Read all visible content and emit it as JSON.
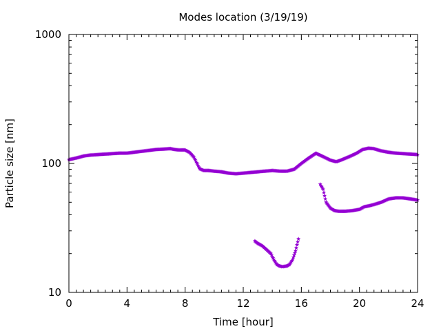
{
  "chart_data": {
    "type": "scatter",
    "title": "Modes location (3/19/19)",
    "xlabel": "Time [hour]",
    "ylabel": "Particle size [nm]",
    "xlim": [
      0,
      24
    ],
    "ylim": [
      10,
      1000
    ],
    "yscale": "log",
    "grid": false,
    "color": "#9400d3",
    "marker": "star",
    "x_ticks": [
      0,
      4,
      8,
      12,
      16,
      20,
      24
    ],
    "x_tick_labels": [
      "0",
      "4",
      "8",
      "12",
      "16",
      "20",
      "24"
    ],
    "y_ticks": [
      10,
      100,
      1000
    ],
    "y_tick_labels": [
      "10",
      "100",
      "1000"
    ],
    "series": [
      {
        "x": [
          0.0,
          0.5,
          1.0,
          1.5,
          2.0,
          2.5,
          3.0,
          3.5,
          4.0,
          4.5,
          5.0,
          5.5,
          6.0,
          6.5,
          7.0,
          7.3,
          7.6,
          8.0,
          8.3,
          8.6,
          9.0,
          9.3,
          9.6,
          10.0,
          10.5,
          11.0,
          11.5,
          12.0,
          12.5,
          13.0,
          13.5,
          14.0,
          14.5,
          15.0,
          15.5,
          16.0,
          16.5,
          17.0,
          17.5,
          18.0,
          18.4,
          18.8,
          19.3,
          19.8,
          20.2,
          20.6,
          21.0,
          21.5,
          22.0,
          22.5,
          23.0,
          23.5,
          24.0
        ],
        "y": [
          107,
          110,
          114,
          116,
          117,
          118,
          119,
          120,
          120,
          122,
          124,
          126,
          128,
          129,
          130,
          128,
          127,
          127,
          122,
          112,
          91,
          88,
          88,
          87,
          86,
          84,
          83,
          84,
          85,
          86,
          87,
          88,
          87,
          87,
          90,
          100,
          110,
          120,
          113,
          106,
          103,
          107,
          113,
          120,
          128,
          131,
          130,
          125,
          122,
          120,
          119,
          118,
          117
        ]
      },
      {
        "x": [
          12.8,
          13.0,
          13.3,
          13.6,
          13.9,
          14.1,
          14.3,
          14.5,
          14.7,
          15.0,
          15.2,
          15.4,
          15.6,
          15.8
        ],
        "y": [
          25,
          24,
          23,
          21.5,
          20,
          18,
          16.5,
          16,
          15.8,
          16,
          16.5,
          18,
          21,
          26
        ]
      },
      {
        "x": [
          17.3,
          17.5,
          17.7,
          18.0,
          18.3,
          18.6,
          19.0,
          19.5,
          20.0,
          20.3,
          20.7,
          21.0,
          21.5,
          22.0,
          22.5,
          23.0,
          23.5,
          24.0
        ],
        "y": [
          69,
          63,
          50,
          45,
          43,
          42.5,
          42.5,
          43,
          44,
          46,
          47,
          48,
          50,
          53,
          54,
          54,
          53,
          52
        ]
      }
    ]
  }
}
